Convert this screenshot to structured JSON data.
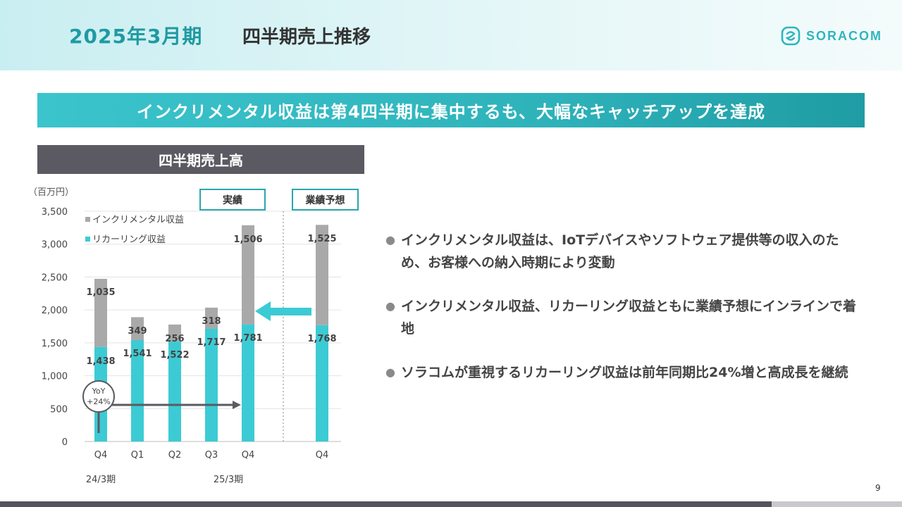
{
  "header": {
    "title_year": "2025年3月期",
    "title_main": "四半期売上推移",
    "logo_text": "SORACOM"
  },
  "banner": {
    "text": "インクリメンタル収益は第4四半期に集中するも、大幅なキャッチアップを達成"
  },
  "chart_panel": {
    "title": "四半期売上高",
    "unit": "（百万円）",
    "label_actual": "実績",
    "label_forecast": "業績予想"
  },
  "chart_data": {
    "type": "bar",
    "stacked": true,
    "categories": [
      "Q4",
      "Q1",
      "Q2",
      "Q3",
      "Q4",
      "Q4"
    ],
    "period_labels": [
      {
        "text": "24/3期",
        "category_index": 0
      },
      {
        "text": "25/3期",
        "category_index": 3
      }
    ],
    "series": [
      {
        "name": "リカーリング収益",
        "color": "#3ccbd4",
        "values": [
          1438,
          1541,
          1522,
          1717,
          1781,
          1768
        ],
        "labels": [
          "1,438",
          "1,541",
          "1,522",
          "1,717",
          "1,781",
          "1,768"
        ]
      },
      {
        "name": "インクリメンタル収益",
        "color": "#a9a9a9",
        "values": [
          1035,
          349,
          256,
          318,
          1506,
          1525
        ],
        "labels": [
          "1,035",
          "349",
          "256",
          "318",
          "1,506",
          "1,525"
        ]
      }
    ],
    "yticks": [
      "0",
      "500",
      "1,000",
      "1,500",
      "2,000",
      "2,500",
      "3,000",
      "3,500"
    ],
    "ylim": [
      0,
      3500
    ],
    "grid": true,
    "legend": "top-left",
    "annotations": {
      "yoy_line1": "YoY",
      "yoy_line2": "+24%"
    }
  },
  "bullets": [
    "インクリメンタル収益は、IoTデバイスやソフトウェア提供等の収入のため、お客様への納入時期により変動",
    "インクリメンタル収益、リカーリング収益ともに業績予想にインラインで着地",
    "ソラコムが重視するリカーリング収益は前年同期比24%増と高成長を継続"
  ],
  "footer": {
    "page_number": "9"
  }
}
